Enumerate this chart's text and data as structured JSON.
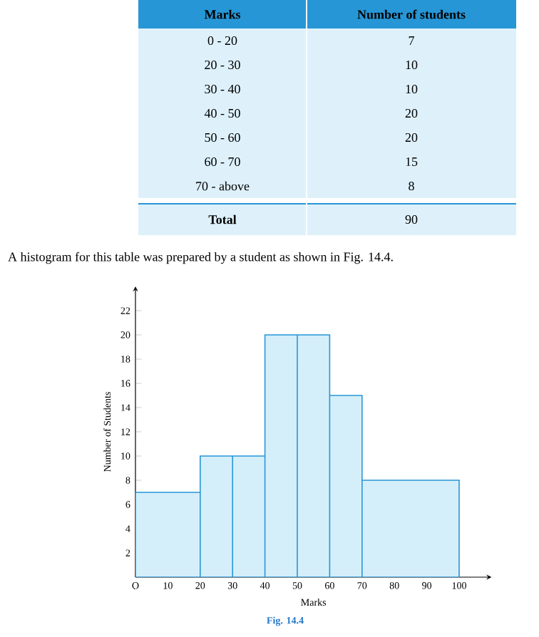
{
  "chart_data": {
    "type": "histogram",
    "bins": [
      0,
      20,
      30,
      40,
      50,
      60,
      70,
      100
    ],
    "values": [
      7,
      10,
      10,
      20,
      20,
      15,
      8
    ],
    "color": "#d4effa",
    "xlabel": "Marks",
    "ylabel": "Number of Students",
    "xlim": [
      0,
      110
    ],
    "ylim": [
      0,
      24
    ],
    "xticks": [
      {
        "value": 0,
        "label": "O"
      },
      10,
      20,
      30,
      40,
      50,
      60,
      70,
      80,
      90,
      100
    ],
    "yticks": [
      2,
      4,
      6,
      8,
      10,
      12,
      14,
      16,
      18,
      20,
      22
    ],
    "grid": false,
    "annotations": [
      "Marks",
      "Number of students",
      "0 - 20",
      "7",
      "20 - 30",
      "10",
      "30 - 40",
      "10",
      "40 - 50",
      "20",
      "50 - 60",
      "20",
      "60 - 70",
      "15",
      "70 - above",
      "8",
      "Total",
      "90",
      "A histogram for this table was prepared by a student as shown in Fig. 14.4.",
      "Fig. 14.4"
    ]
  }
}
